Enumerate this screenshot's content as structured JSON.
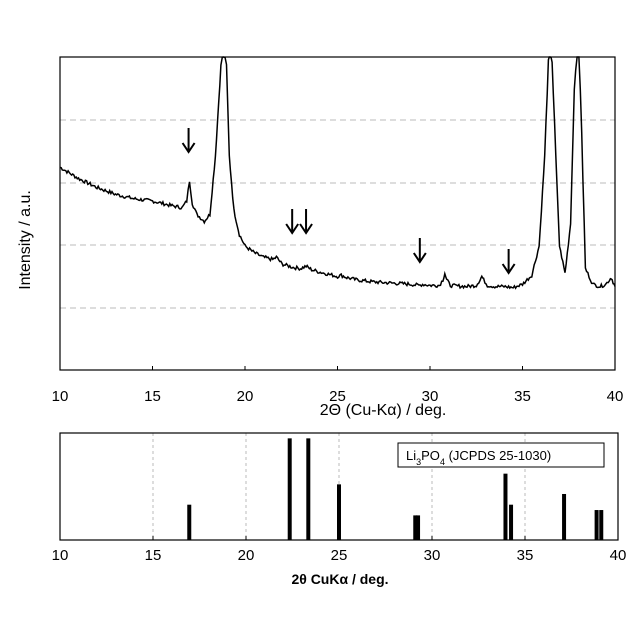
{
  "chart_data": [
    {
      "type": "line",
      "xlabel": "2Θ (Cu-Kα) / deg.",
      "ylabel": "Intensity / a.u.",
      "xlim": [
        10,
        40
      ],
      "x_ticks": [
        "10",
        "15",
        "20",
        "25",
        "30",
        "35",
        "40"
      ],
      "grid": "horizontal dashed",
      "series": [
        {
          "x": [
            10,
            11,
            12,
            13,
            14,
            15,
            16,
            16.6,
            16.85,
            17.0,
            17.15,
            17.4,
            17.8,
            18.1,
            18.4,
            18.7,
            18.85,
            19.0,
            19.15,
            19.4,
            19.7,
            20.0,
            20.5,
            21.0,
            21.5,
            21.7,
            22.0,
            22.6,
            23.0,
            23.3,
            23.6,
            24.0,
            24.5,
            25.0,
            25.2,
            25.5,
            26,
            27,
            28,
            29,
            29.4,
            29.6,
            30,
            30.5,
            30.7,
            30.8,
            30.9,
            31.1,
            31.5,
            32,
            32.5,
            32.7,
            32.8,
            32.9,
            33.1,
            33.5,
            34,
            34.5,
            35,
            35.5,
            35.9,
            36.2,
            36.4,
            36.5,
            36.6,
            36.8,
            37.0,
            37.3,
            37.6,
            37.8,
            37.95,
            38.05,
            38.2,
            38.4,
            38.8,
            39.2,
            39.5,
            39.7,
            39.8,
            39.9,
            40
          ],
          "y": [
            55,
            50,
            46,
            43,
            41,
            40,
            38,
            37,
            40,
            49,
            39,
            34,
            31,
            34,
            60,
            100,
            108,
            100,
            60,
            36,
            25,
            20,
            17,
            15,
            14,
            15,
            12,
            10.5,
            10,
            11,
            9.5,
            8.5,
            7.5,
            6.5,
            7,
            6,
            5,
            4,
            3.5,
            3,
            2.5,
            3,
            2.5,
            2.5,
            5,
            8,
            5,
            2.5,
            2.2,
            2,
            2.5,
            5,
            6.5,
            5,
            2.5,
            2,
            2,
            1.5,
            3,
            7,
            20,
            60,
            102,
            106,
            102,
            60,
            20,
            8,
            30,
            90,
            108,
            110,
            70,
            10,
            3,
            2,
            3,
            5,
            6,
            4,
            2
          ]
        }
      ],
      "annotations": [
        {
          "label": "arrow",
          "x": 16.95
        },
        {
          "label": "arrow",
          "x": 22.55
        },
        {
          "label": "arrow",
          "x": 23.3
        },
        {
          "label": "arrow",
          "x": 29.45
        },
        {
          "label": "arrow",
          "x": 34.25
        }
      ]
    },
    {
      "type": "bar",
      "xlabel": "2θ  CuKα  /  deg.",
      "xlim": [
        10,
        40
      ],
      "x_ticks": [
        "10",
        "15",
        "20",
        "25",
        "30",
        "35",
        "40"
      ],
      "legend": "Li3PO4 (JCPDS 25-1030)",
      "legend_parts": {
        "a": "Li",
        "sub1": "3",
        "b": "PO",
        "sub2": "4",
        "c": " (JCPDS 25-1030)"
      },
      "legend_position": "top-right",
      "ylim": [
        0,
        100
      ],
      "x": [
        16.95,
        22.35,
        23.35,
        25.0,
        29.1,
        29.25,
        33.95,
        34.25,
        37.1,
        38.85,
        39.1
      ],
      "values": [
        33,
        95,
        95,
        52,
        23,
        23,
        62,
        33,
        43,
        28,
        28
      ]
    }
  ]
}
